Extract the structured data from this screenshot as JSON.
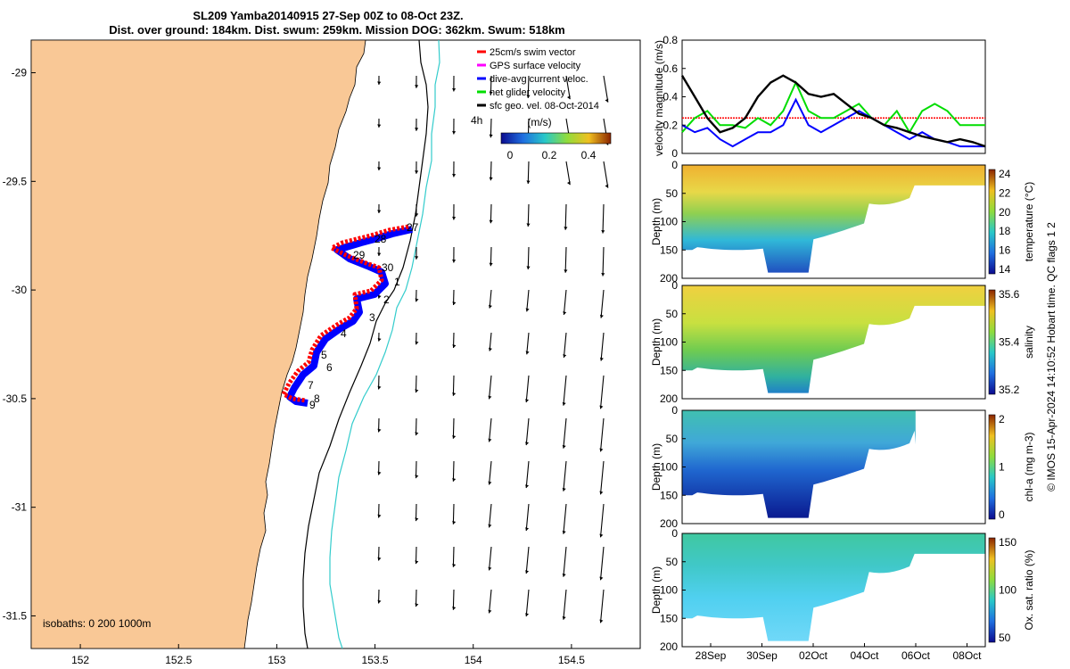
{
  "title_line1": "SL209 Yamba20140915 27-Sep 00Z to 08-Oct 23Z.",
  "title_line2": "Dist. over ground: 184km. Dist. swum: 259km. Mission DOG: 362km. Swum: 518km",
  "legend": [
    {
      "label": "25cm/s swim vector",
      "color": "#ff0000"
    },
    {
      "label": "GPS surface velocity",
      "color": "#ff00ff"
    },
    {
      "label": "dive-avg current veloc.",
      "color": "#0000ff"
    },
    {
      "label": "net glider velocity",
      "color": "#00dd00"
    },
    {
      "label": "sfc geo. vel. 08-Oct-2014",
      "color": "#000000"
    }
  ],
  "map_annotations": {
    "speed_unit": "(m/s)",
    "speed_ticks": [
      "0",
      "0.2",
      "0.4"
    ],
    "time_marker": "4h",
    "isobaths": "isobaths: 0   200  1000m",
    "day_labels": [
      "27",
      "28",
      "29",
      "30",
      "1",
      "2",
      "3",
      "4",
      "5",
      "6",
      "7",
      "8",
      "9"
    ]
  },
  "colors": {
    "land": "#f9c896",
    "glider_track_red": "#ff0000",
    "glider_track_blue": "#0000ff",
    "isobath_200": "#000000",
    "isobath_1000": "#33cccc"
  },
  "footer": "© IMOS 15-Apr-2024 14:10:52 Hobart time. QC flags 1  2",
  "chart_data": [
    {
      "type": "map",
      "xlabel": "",
      "ylabel": "",
      "x_ticks": [
        "152",
        "152.5",
        "153",
        "153.5",
        "154",
        "154.5"
      ],
      "y_ticks": [
        "-29",
        "-29.5",
        "-30",
        "-30.5",
        "-31",
        "-31.5"
      ],
      "xlim": [
        151.75,
        154.85
      ],
      "ylim": [
        -31.65,
        -28.85
      ]
    },
    {
      "type": "line",
      "ylabel": "velocity magnitude (m/s)",
      "ylim": [
        0,
        0.8
      ],
      "y_ticks": [
        "0",
        "0.2",
        "0.4",
        "0.6",
        "0.8"
      ],
      "x": [
        0,
        0.5,
        1,
        1.5,
        2,
        2.5,
        3,
        3.5,
        4,
        4.5,
        5,
        5.5,
        6,
        6.5,
        7,
        7.5,
        8,
        8.5,
        9,
        9.5,
        10,
        10.5,
        11,
        11.5,
        12
      ],
      "series": [
        {
          "color": "#ff0000",
          "values": [
            0.25,
            0.25,
            0.25,
            0.25,
            0.25,
            0.25,
            0.25,
            0.25,
            0.25,
            0.25,
            0.25,
            0.25,
            0.25,
            0.25,
            0.25,
            0.25,
            0.25,
            0.25,
            0.25,
            0.25,
            0.25,
            0.25,
            0.25,
            0.25,
            0.25
          ]
        },
        {
          "color": "#00dd00",
          "values": [
            0.15,
            0.25,
            0.3,
            0.2,
            0.2,
            0.18,
            0.25,
            0.2,
            0.3,
            0.5,
            0.3,
            0.25,
            0.25,
            0.3,
            0.35,
            0.25,
            0.2,
            0.3,
            0.15,
            0.3,
            0.35,
            0.3,
            0.2,
            0.2,
            0.2
          ]
        },
        {
          "color": "#0000ff",
          "values": [
            0.2,
            0.15,
            0.18,
            0.1,
            0.05,
            0.1,
            0.15,
            0.15,
            0.2,
            0.38,
            0.2,
            0.15,
            0.2,
            0.25,
            0.3,
            0.25,
            0.2,
            0.15,
            0.1,
            0.15,
            0.1,
            0.08,
            0.05,
            0.05,
            0.05
          ]
        },
        {
          "color": "#000000",
          "values": [
            0.55,
            0.4,
            0.25,
            0.15,
            0.18,
            0.25,
            0.4,
            0.5,
            0.55,
            0.5,
            0.42,
            0.4,
            0.42,
            0.35,
            0.28,
            0.25,
            0.2,
            0.18,
            0.15,
            0.12,
            0.1,
            0.08,
            0.1,
            0.08,
            0.05
          ]
        }
      ]
    },
    {
      "type": "heatmap",
      "ylabel": "Depth (m)",
      "colorbar_label": "temperature (°C)",
      "colorbar_ticks": [
        "14",
        "16",
        "18",
        "20",
        "22",
        "24"
      ],
      "y_ticks": [
        "0",
        "50",
        "100",
        "150",
        "200"
      ]
    },
    {
      "type": "heatmap",
      "ylabel": "Depth (m)",
      "colorbar_label": "salinity",
      "colorbar_ticks": [
        "35.2",
        "35.4",
        "35.6"
      ],
      "y_ticks": [
        "0",
        "50",
        "100",
        "150",
        "200"
      ]
    },
    {
      "type": "heatmap",
      "ylabel": "Depth (m)",
      "colorbar_label": "chl-a (mg m-3)",
      "colorbar_ticks": [
        "0",
        "1",
        "2"
      ],
      "y_ticks": [
        "0",
        "50",
        "100",
        "150",
        "200"
      ]
    },
    {
      "type": "heatmap",
      "ylabel": "Depth (m)",
      "colorbar_label": "Ox. sat. ratio (%)",
      "colorbar_ticks": [
        "50",
        "100",
        "150"
      ],
      "y_ticks": [
        "0",
        "50",
        "100",
        "150",
        "200"
      ],
      "x_ticks": [
        "28Sep",
        "30Sep",
        "02Oct",
        "04Oct",
        "06Oct",
        "08Oct"
      ]
    }
  ]
}
